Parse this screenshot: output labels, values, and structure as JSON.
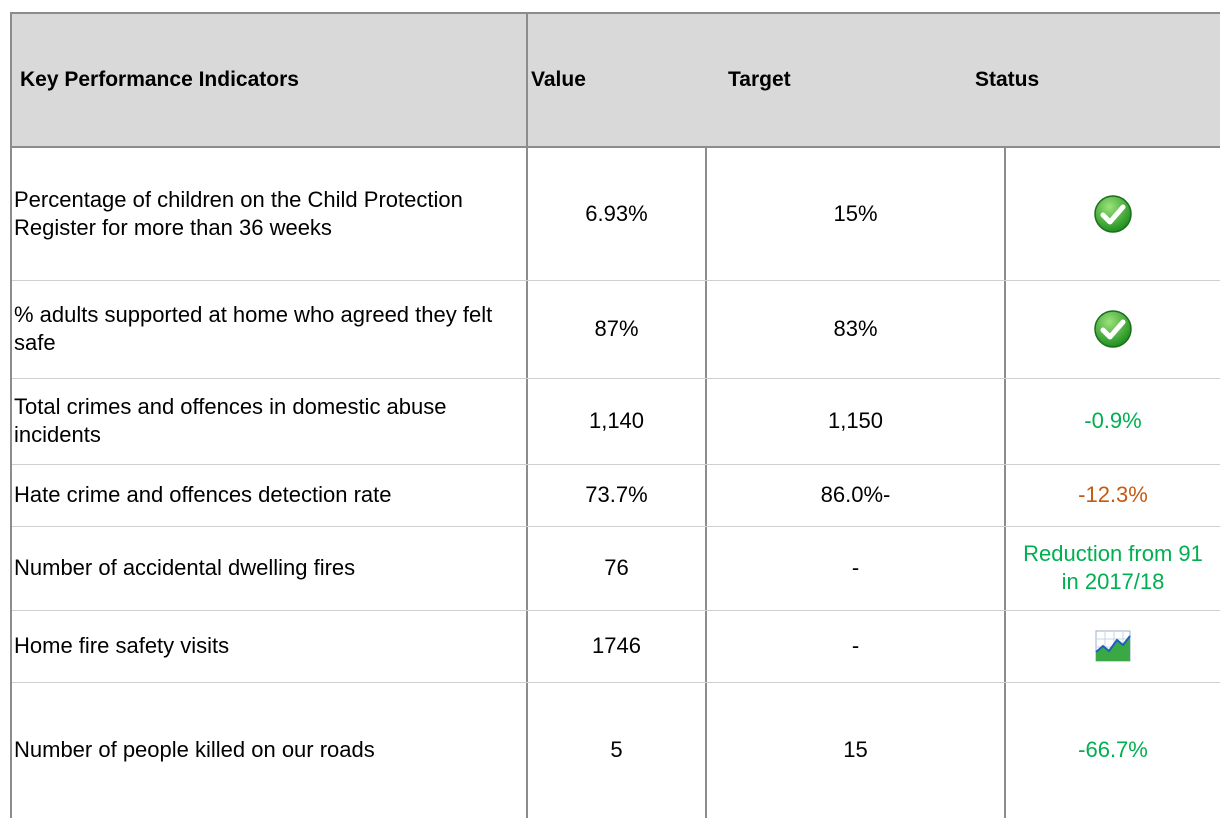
{
  "header": {
    "indicator": "Key Performance Indicators",
    "value": "Value",
    "target": "Target",
    "status": "Status"
  },
  "rows": [
    {
      "indicator": "Percentage of children on the Child Protection Register for more than 36 weeks",
      "value": "6.93%",
      "target": "15%",
      "status_icon": "check"
    },
    {
      "indicator": "% adults supported at home who agreed they felt safe",
      "value": "87%",
      "target": "83%",
      "status_icon": "check"
    },
    {
      "indicator": "Total crimes and offences in domestic abuse incidents",
      "value": "1,140",
      "target": "1,150",
      "status": "-0.9%",
      "status_color": "#00b050"
    },
    {
      "indicator": "Hate crime and offences detection rate",
      "value": "73.7%",
      "target": "86.0%-",
      "status": "-12.3%",
      "status_color": "#c55a11"
    },
    {
      "indicator": "Number of accidental dwelling fires",
      "value": "76",
      "target": "-",
      "status": "Reduction from 91 in 2017/18",
      "status_color": "#00b050"
    },
    {
      "indicator": "Home fire safety visits",
      "value": "1746",
      "target": "-",
      "status_icon": "chart"
    },
    {
      "indicator": "Number of people killed on our roads",
      "value": "5",
      "target": "15",
      "status": "-66.7%",
      "status_color": "#00b050"
    }
  ]
}
